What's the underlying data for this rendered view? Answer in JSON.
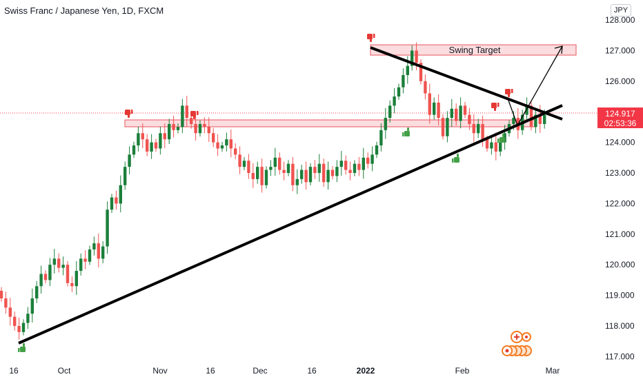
{
  "header": {
    "title": "Swiss Franc / Japanese Yen, 1D, FXCM",
    "currency_label": "JPY"
  },
  "price_tag": {
    "price": "124.917",
    "countdown": "02:53:36",
    "color": "#f23645"
  },
  "colors": {
    "up": "#26a69a",
    "up_dark": "#1b7f3a",
    "down": "#ef5350",
    "zone_fill": "#f9c6c9",
    "zone_stroke": "#e8535f",
    "trend": "#000000"
  },
  "chart_data": {
    "type": "candlestick",
    "symbol": "CHFJPY",
    "timeframe": "1D",
    "y_axis": {
      "range": [
        116.8,
        128.3
      ],
      "ticks": [
        "128.000",
        "127.000",
        "126.000",
        "125.000",
        "124.000",
        "123.000",
        "122.000",
        "121.000",
        "120.000",
        "119.000",
        "118.000",
        "117.000"
      ]
    },
    "x_axis": {
      "ticks": [
        "16",
        "Oct",
        "Nov",
        "16",
        "Dec",
        "16",
        "2022",
        "Feb",
        "Mar"
      ],
      "bold_ticks": [
        "2022"
      ]
    },
    "current_price": 124.917,
    "annotations": {
      "swing_target_label": "Swing Target",
      "swing_target_zone": [
        126.85,
        127.15
      ],
      "resistance_zone": [
        124.5,
        124.7
      ]
    },
    "closes": [
      118.9,
      118.6,
      118.3,
      118.0,
      117.8,
      118.1,
      118.4,
      118.9,
      119.3,
      119.7,
      119.5,
      120.0,
      120.2,
      119.9,
      120.0,
      119.4,
      119.3,
      119.8,
      120.2,
      120.1,
      120.5,
      120.7,
      120.2,
      120.6,
      121.8,
      122.2,
      122.0,
      122.6,
      123.2,
      123.6,
      123.9,
      124.3,
      124.1,
      123.7,
      124.0,
      123.8,
      124.3,
      124.1,
      124.6,
      124.4,
      124.5,
      125.2,
      124.8,
      124.6,
      124.3,
      124.6,
      124.5,
      124.3,
      124.0,
      123.8,
      123.9,
      124.1,
      123.8,
      123.6,
      123.2,
      123.4,
      123.0,
      122.8,
      123.2,
      122.6,
      123.1,
      123.2,
      123.5,
      123.1,
      123.0,
      123.3,
      122.6,
      122.8,
      123.1,
      122.7,
      123.2,
      123.0,
      123.3,
      122.7,
      123.1,
      122.9,
      123.2,
      123.4,
      123.1,
      123.0,
      123.3,
      123.1,
      123.5,
      123.3,
      123.6,
      123.9,
      124.4,
      124.8,
      125.2,
      125.5,
      125.8,
      126.2,
      126.5,
      127.0,
      126.6,
      126.0,
      125.6,
      124.9,
      125.3,
      124.8,
      124.2,
      124.8,
      125.1,
      124.7,
      125.2,
      124.9,
      124.6,
      124.3,
      124.6,
      124.1,
      123.8,
      124.0,
      123.7,
      124.0,
      124.3,
      124.6,
      124.8,
      124.4,
      124.9,
      125.2,
      124.5,
      124.9,
      124.6,
      124.9
    ]
  },
  "icons": {
    "sell_marker": "thumbs-down-icon",
    "buy_marker": "thumbs-up-icon",
    "events": "economic-events-icon"
  }
}
